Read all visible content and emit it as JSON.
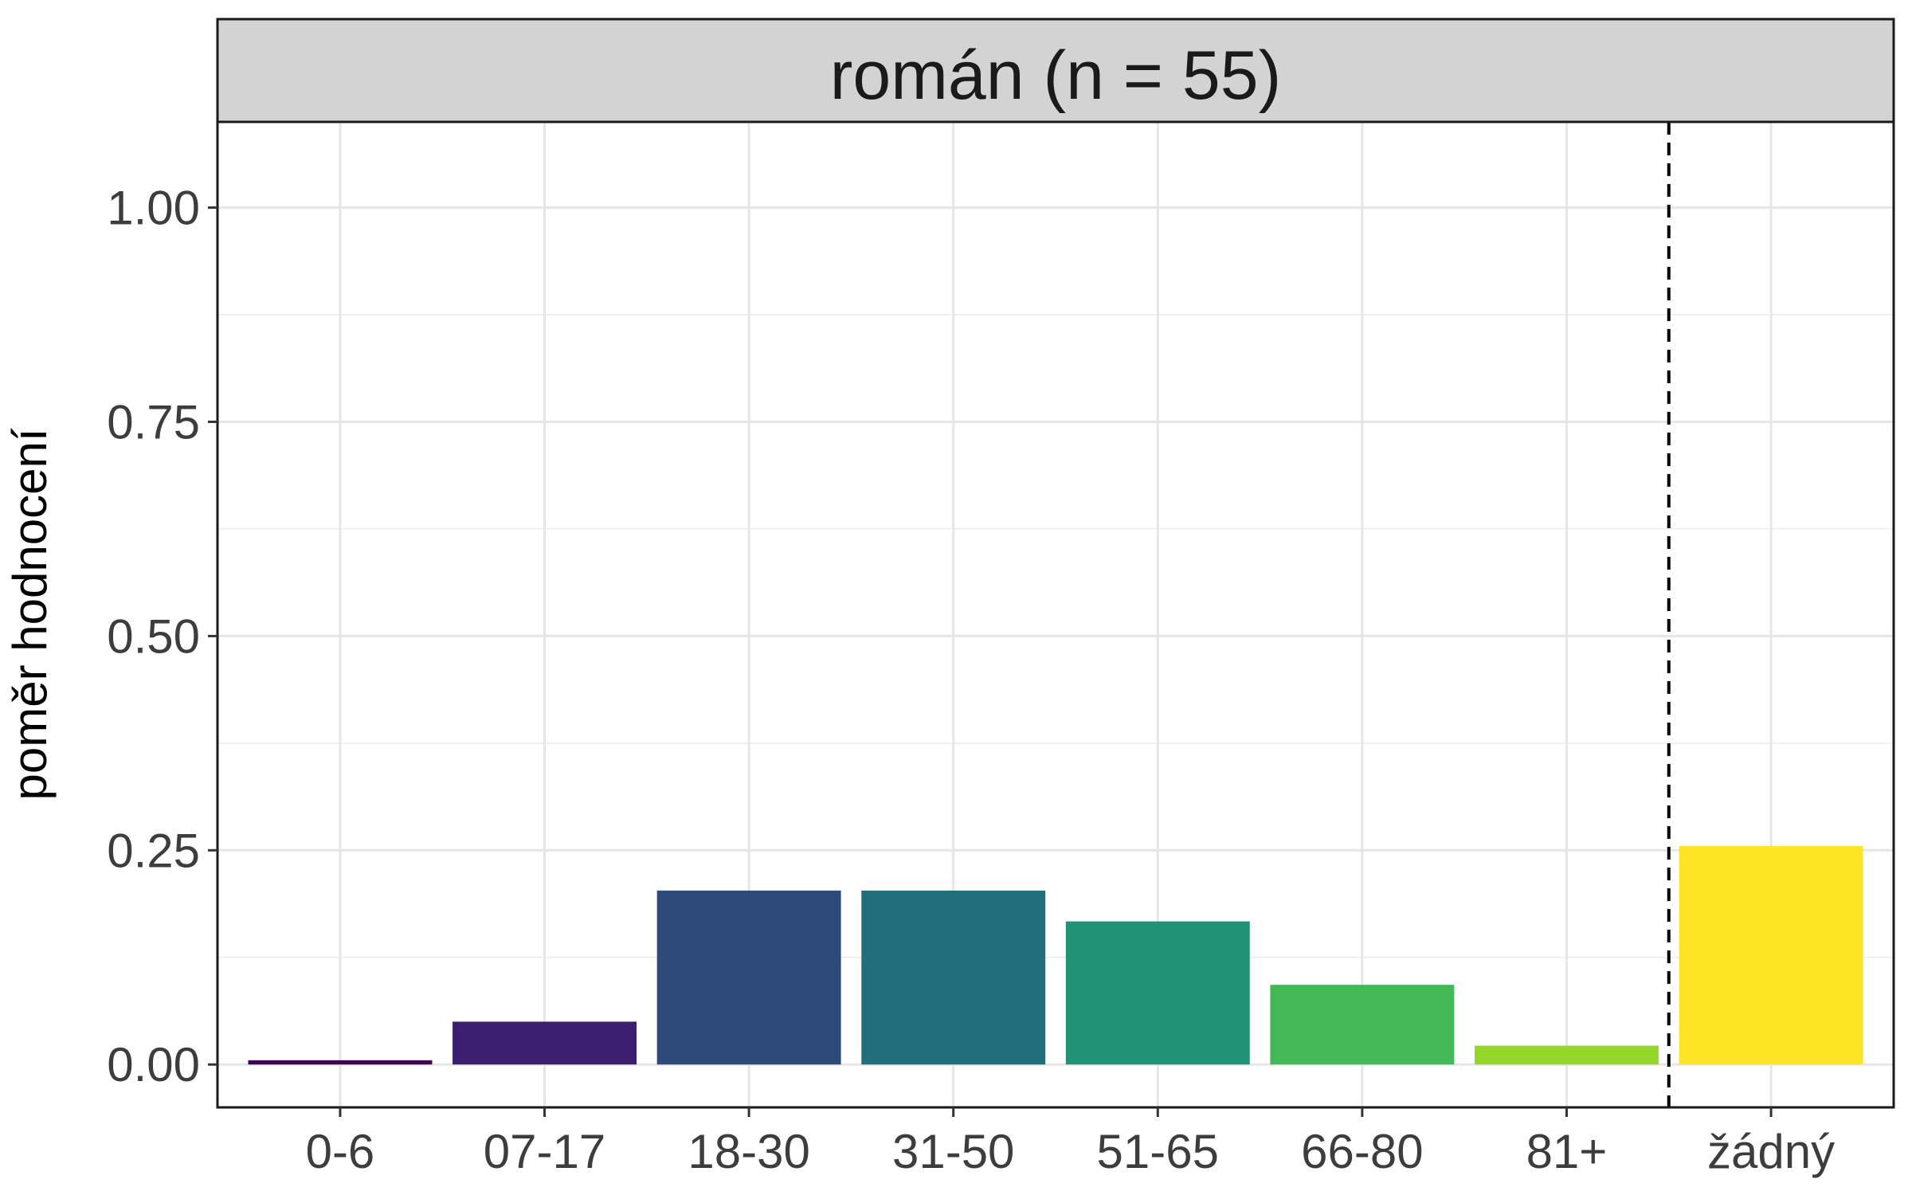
{
  "chart_data": {
    "type": "bar",
    "panel_title": "román (n = 55)",
    "ylabel": "poměr hodnocení",
    "xlabel": "",
    "categories": [
      "0-6",
      "07-17",
      "18-30",
      "31-50",
      "51-65",
      "66-80",
      "81+",
      "žádný"
    ],
    "values": [
      0.005,
      0.05,
      0.203,
      0.203,
      0.167,
      0.093,
      0.022,
      0.255
    ],
    "colors": [
      "#440154",
      "#3b1f6e",
      "#2d4a7a",
      "#226e7a",
      "#229276",
      "#42b857",
      "#92d72a",
      "#fde424"
    ],
    "ylim": [
      -0.05,
      1.1
    ],
    "y_ticks": [
      0,
      0.25,
      0.5,
      0.75,
      1.0
    ],
    "y_tick_labels": [
      "0.00",
      "0.25",
      "0.50",
      "0.75",
      "1.00"
    ],
    "dashed_separator_after_category": "81+",
    "grid": true
  }
}
